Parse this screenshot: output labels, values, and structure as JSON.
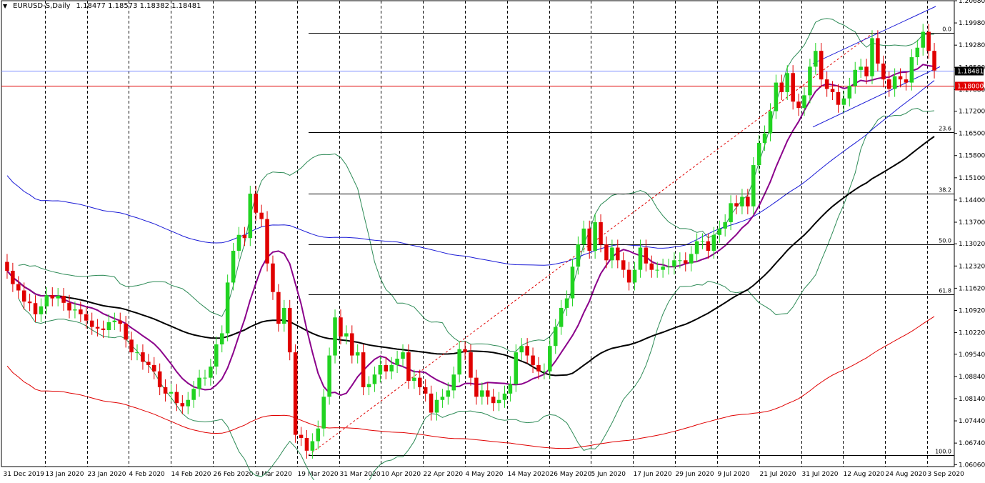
{
  "header": {
    "symbol": "EURUSD-S,Daily",
    "ohlc": "1.18477 1.18573 1.18382 1.18481"
  },
  "colors": {
    "background": "#ffffff",
    "bull": "#21d321",
    "bear": "#e00000",
    "ma_fast": "#8b008b",
    "ma_slow": "#000000",
    "bollinger": "#2e8b57",
    "ma_blue": "#1a1ad6",
    "ma_red": "#e00000",
    "bid_line": "#7c8cff",
    "level_line": "#e00000",
    "fib": "#000000",
    "channel": "#1a1ad6"
  },
  "icons": {
    "dropdown": "triangle-down-icon"
  },
  "chart_data": {
    "type": "candlestick",
    "title": "EURUSD-S,Daily",
    "ylim": [
      1.06,
      1.2068
    ],
    "y_ticks": [
      "1.20680",
      "1.19980",
      "1.19280",
      "1.18580",
      "1.17880",
      "1.17200",
      "1.16500",
      "1.15800",
      "1.15100",
      "1.14400",
      "1.13700",
      "1.13020",
      "1.12320",
      "1.11620",
      "1.10920",
      "1.10220",
      "1.09540",
      "1.08840",
      "1.08140",
      "1.07440",
      "1.06740",
      "1.06060"
    ],
    "x_labels": [
      "31 Dec 2019",
      "13 Jan 2020",
      "23 Jan 2020",
      "4 Feb 2020",
      "14 Feb 2020",
      "26 Feb 2020",
      "9 Mar 2020",
      "19 Mar 2020",
      "31 Mar 2020",
      "10 Apr 2020",
      "22 Apr 2020",
      "4 May 2020",
      "14 May 2020",
      "26 May 2020",
      "5 Jun 2020",
      "17 Jun 2020",
      "29 Jun 2020",
      "9 Jul 2020",
      "21 Jul 2020",
      "31 Jul 2020",
      "12 Aug 2020",
      "24 Aug 2020",
      "3 Sep 2020"
    ],
    "grid": "vertical dashed",
    "bid_label": "1.18481",
    "level_label": "1.18000",
    "fib_labels": [
      "0.0",
      "23.6",
      "38.2",
      "50.0",
      "61.8",
      "100.0"
    ],
    "fib_levels": [
      1.1966,
      1.1653,
      1.146,
      1.13,
      1.1142,
      1.0636
    ],
    "bid": 1.18481,
    "level": 1.18,
    "closes": [
      1.1217,
      1.1175,
      1.1155,
      1.112,
      1.1115,
      1.108,
      1.1105,
      1.114,
      1.113,
      1.1138,
      1.1116,
      1.1092,
      1.1095,
      1.108,
      1.106,
      1.104,
      1.1035,
      1.103,
      1.1055,
      1.106,
      1.105,
      1.1,
      1.096,
      1.096,
      1.093,
      1.092,
      1.09,
      1.085,
      1.083,
      1.0835,
      1.08,
      1.079,
      1.081,
      1.0845,
      1.088,
      1.088,
      1.0915,
      1.0985,
      1.102,
      1.118,
      1.128,
      1.133,
      1.132,
      1.146,
      1.14,
      1.138,
      1.124,
      1.115,
      1.105,
      1.11,
      1.096,
      1.07,
      1.069,
      1.065,
      1.068,
      1.072,
      1.082,
      1.095,
      1.107,
      1.101,
      1.102,
      1.095,
      1.096,
      1.085,
      1.086,
      1.089,
      1.092,
      1.09,
      1.092,
      1.094,
      1.096,
      1.087,
      1.088,
      1.085,
      1.083,
      1.077,
      1.081,
      1.082,
      1.084,
      1.089,
      1.097,
      1.096,
      1.088,
      1.082,
      1.084,
      1.082,
      1.08,
      1.081,
      1.083,
      1.086,
      1.096,
      1.098,
      1.095,
      1.092,
      1.09,
      1.09,
      1.098,
      1.104,
      1.11,
      1.113,
      1.123,
      1.13,
      1.135,
      1.128,
      1.137,
      1.13,
      1.125,
      1.129,
      1.125,
      1.122,
      1.118,
      1.122,
      1.129,
      1.124,
      1.122,
      1.122,
      1.123,
      1.123,
      1.125,
      1.125,
      1.124,
      1.127,
      1.131,
      1.131,
      1.128,
      1.133,
      1.135,
      1.137,
      1.143,
      1.142,
      1.145,
      1.142,
      1.155,
      1.162,
      1.165,
      1.172,
      1.181,
      1.178,
      1.184,
      1.175,
      1.173,
      1.177,
      1.186,
      1.191,
      1.182,
      1.179,
      1.178,
      1.174,
      1.176,
      1.18,
      1.185,
      1.186,
      1.183,
      1.195,
      1.187,
      1.182,
      1.179,
      1.183,
      1.182,
      1.181,
      1.189,
      1.192,
      1.197,
      1.191,
      1.1848
    ]
  }
}
